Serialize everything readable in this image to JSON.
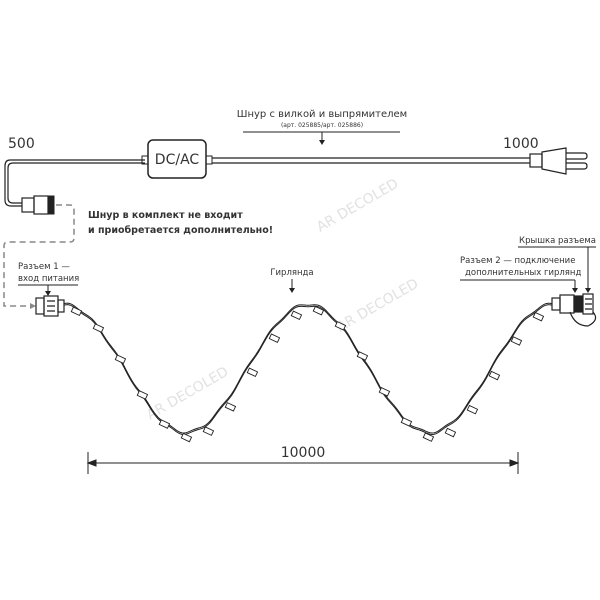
{
  "cord": {
    "title": "Шнур с вилкой и выпрямителем",
    "article": "(арт. 025885/арт. 025886)",
    "adapter_label": "DC/AC",
    "length_left": "500",
    "length_right": "1000"
  },
  "note": {
    "line1": "Шнур в комплект не входит",
    "line2": "и приобретается дополнительно!"
  },
  "connector1": {
    "line1": "Разъем 1 —",
    "line2": "вход питания"
  },
  "garland_label": "Гирлянда",
  "connector2": {
    "line1": "Разъем 2 — подключение",
    "line2": "дополнительных гирлянд"
  },
  "cap_label": "Крышка разъема",
  "garland_length": "10000",
  "watermark": "AR DECOLED",
  "colors": {
    "line": "#222222",
    "dashed": "#888888",
    "text": "#333333",
    "watermark": "#e2e2e2"
  }
}
